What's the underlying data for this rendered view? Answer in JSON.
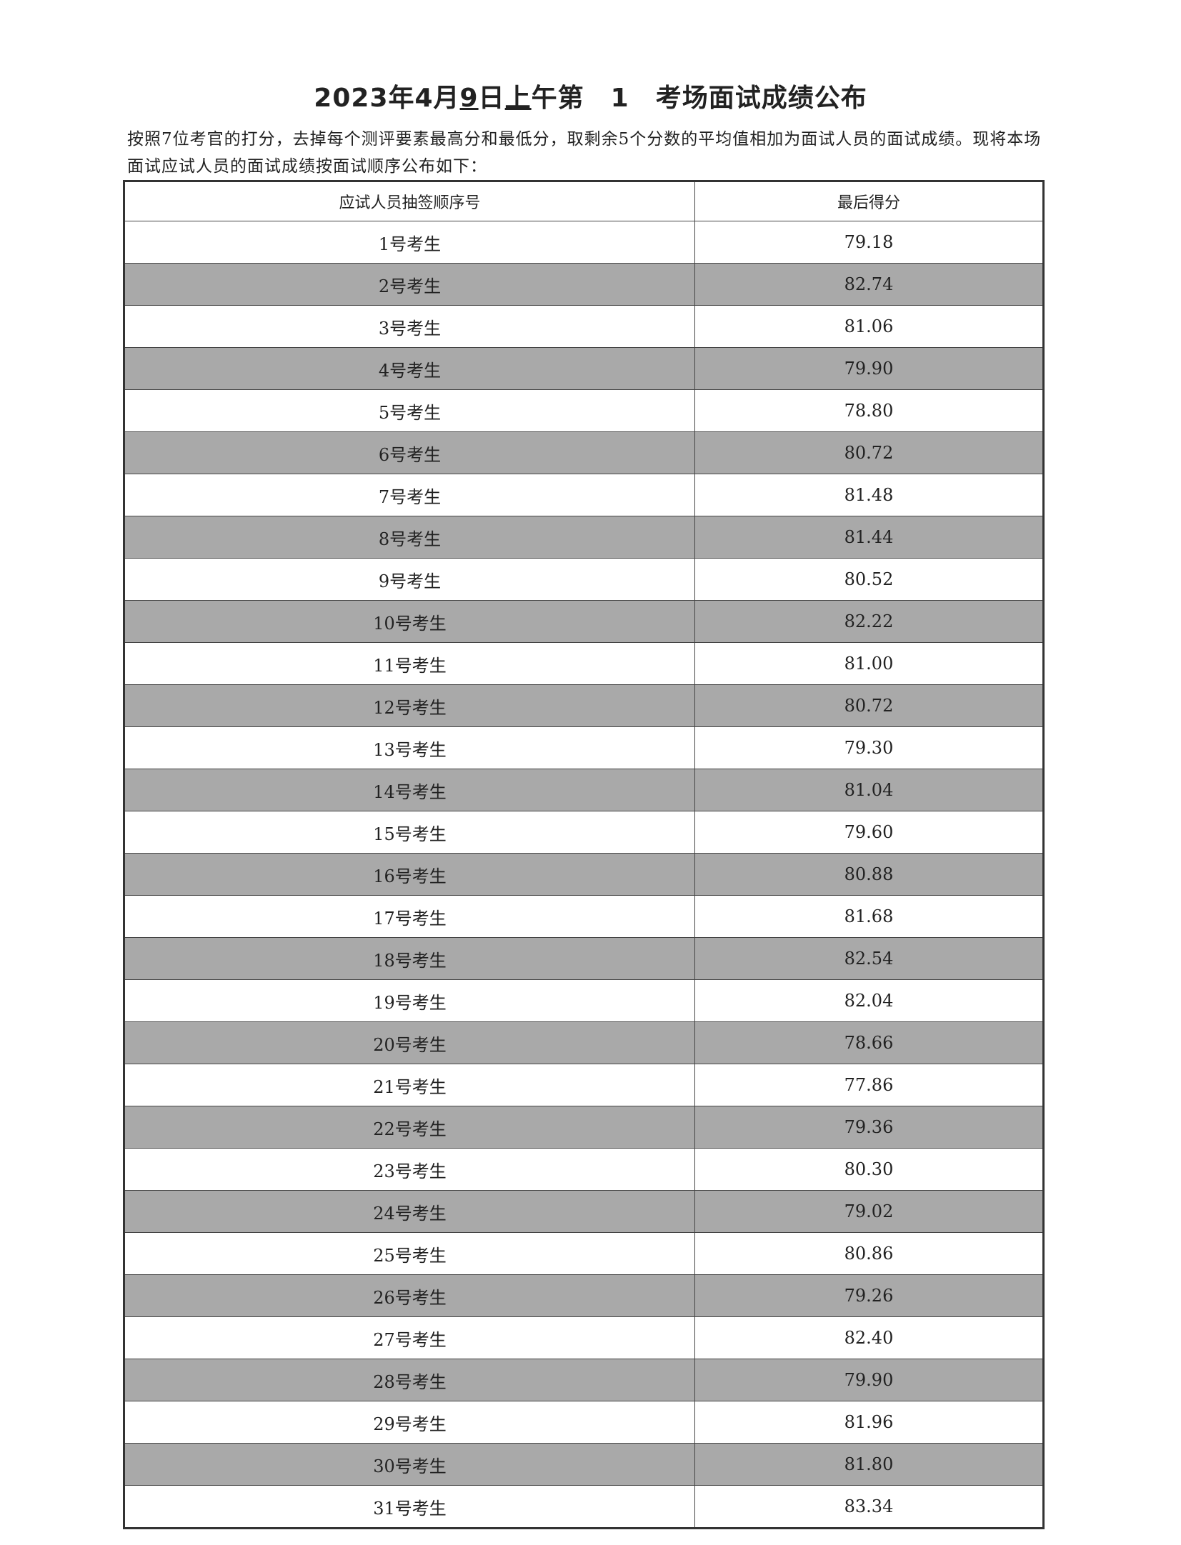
{
  "title": {
    "prefix": "2023年4月",
    "day": "9",
    "mid": "日",
    "period": "上",
    "suffix": "午第　1　考场面试成绩公布"
  },
  "intro": "按照7位考官的打分，去掉每个测评要素最高分和最低分，取剩余5个分数的平均值相加为面试人员的面试成绩。现将本场面试应试人员的面试成绩按面试顺序公布如下：",
  "table": {
    "headers": [
      "应试人员抽签顺序号",
      "最后得分"
    ],
    "shade_color": "#a9a9a9",
    "rows": [
      [
        "1号考生",
        "79.18"
      ],
      [
        "2号考生",
        "82.74"
      ],
      [
        "3号考生",
        "81.06"
      ],
      [
        "4号考生",
        "79.90"
      ],
      [
        "5号考生",
        "78.80"
      ],
      [
        "6号考生",
        "80.72"
      ],
      [
        "7号考生",
        "81.48"
      ],
      [
        "8号考生",
        "81.44"
      ],
      [
        "9号考生",
        "80.52"
      ],
      [
        "10号考生",
        "82.22"
      ],
      [
        "11号考生",
        "81.00"
      ],
      [
        "12号考生",
        "80.72"
      ],
      [
        "13号考生",
        "79.30"
      ],
      [
        "14号考生",
        "81.04"
      ],
      [
        "15号考生",
        "79.60"
      ],
      [
        "16号考生",
        "80.88"
      ],
      [
        "17号考生",
        "81.68"
      ],
      [
        "18号考生",
        "82.54"
      ],
      [
        "19号考生",
        "82.04"
      ],
      [
        "20号考生",
        "78.66"
      ],
      [
        "21号考生",
        "77.86"
      ],
      [
        "22号考生",
        "79.36"
      ],
      [
        "23号考生",
        "80.30"
      ],
      [
        "24号考生",
        "79.02"
      ],
      [
        "25号考生",
        "80.86"
      ],
      [
        "26号考生",
        "79.26"
      ],
      [
        "27号考生",
        "82.40"
      ],
      [
        "28号考生",
        "79.90"
      ],
      [
        "29号考生",
        "81.96"
      ],
      [
        "30号考生",
        "81.80"
      ],
      [
        "31号考生",
        "83.34"
      ]
    ]
  }
}
